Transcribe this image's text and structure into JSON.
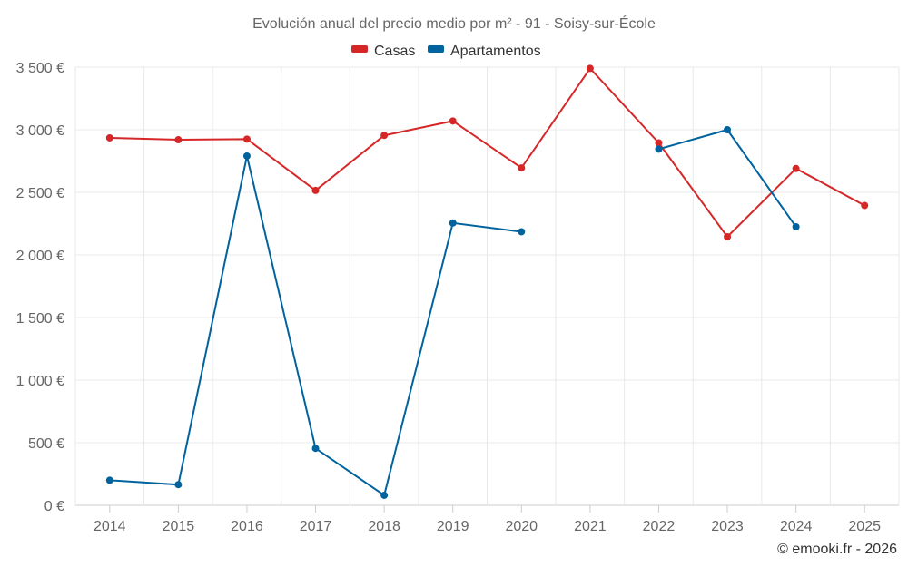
{
  "chart_data": {
    "type": "line",
    "title": "Evolución anual del precio medio por m² - 91 - Soisy-sur-École",
    "categories": [
      "2014",
      "2015",
      "2016",
      "2017",
      "2018",
      "2019",
      "2020",
      "2021",
      "2022",
      "2023",
      "2024",
      "2025"
    ],
    "ylim": [
      0,
      3500
    ],
    "yticks": [
      0,
      500,
      1000,
      1500,
      2000,
      2500,
      3000,
      3500
    ],
    "ytick_labels": [
      "0 €",
      "500 €",
      "1 000 €",
      "1 500 €",
      "2 000 €",
      "2 500 €",
      "3 000 €",
      "3 500 €"
    ],
    "xlabel": "",
    "ylabel": "",
    "grid": true,
    "legend_position": "top-center",
    "series": [
      {
        "name": "Casas",
        "color": "#d62728",
        "values": [
          2935,
          2920,
          2925,
          2515,
          2955,
          3070,
          2695,
          3490,
          2895,
          2145,
          2690,
          2395
        ]
      },
      {
        "name": "Apartamentos",
        "color": "#00639e",
        "values": [
          200,
          165,
          2790,
          455,
          80,
          2255,
          2185,
          null,
          2845,
          3000,
          2225,
          null
        ]
      }
    ]
  },
  "credit": "© emooki.fr - 2026"
}
